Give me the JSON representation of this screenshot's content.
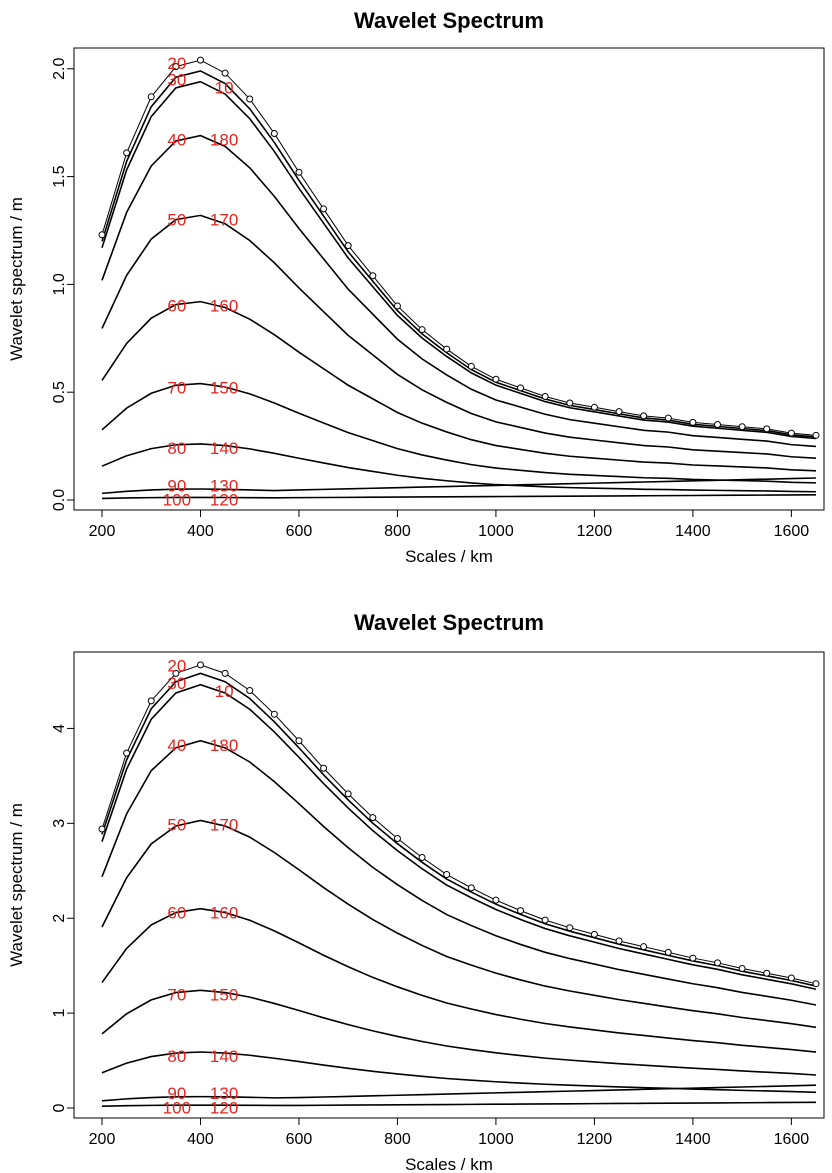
{
  "colors": {
    "label": "#e8231d",
    "line": "#000000"
  },
  "chart_data": [
    {
      "type": "line",
      "title": "Wavelet Spectrum",
      "xlabel": "Scales / km",
      "ylabel": "Wavelet spectrum / m",
      "xlim": [
        200,
        1650
      ],
      "ylim": [
        0,
        2.05
      ],
      "xticks": [
        "200",
        "400",
        "600",
        "800",
        "1000",
        "1200",
        "1400",
        "1600"
      ],
      "yticks": [
        "0.0",
        "0.5",
        "1.0",
        "1.5",
        "2.0"
      ],
      "x": [
        200,
        250,
        300,
        350,
        400,
        450,
        500,
        550,
        600,
        650,
        700,
        750,
        800,
        850,
        900,
        950,
        1000,
        1050,
        1100,
        1150,
        1200,
        1250,
        1300,
        1350,
        1400,
        1450,
        1500,
        1550,
        1600,
        1650
      ],
      "total": [
        1.23,
        1.61,
        1.87,
        2.01,
        2.04,
        1.98,
        1.86,
        1.7,
        1.52,
        1.35,
        1.18,
        1.04,
        0.9,
        0.79,
        0.7,
        0.62,
        0.56,
        0.52,
        0.48,
        0.45,
        0.43,
        0.41,
        0.39,
        0.38,
        0.36,
        0.35,
        0.34,
        0.33,
        0.31,
        0.3
      ],
      "levels": [
        {
          "left": "20",
          "right": "10",
          "peak": 1.99
        },
        {
          "left": "30",
          "right": "",
          "peak": 1.94
        },
        {
          "left": "40",
          "right": "180",
          "peak": 1.69
        },
        {
          "left": "50",
          "right": "170",
          "peak": 1.32
        },
        {
          "left": "60",
          "right": "160",
          "peak": 0.92
        },
        {
          "left": "70",
          "right": "150",
          "peak": 0.54
        },
        {
          "left": "80",
          "right": "140",
          "peak": 0.26
        },
        {
          "left": "90",
          "right": "130",
          "peak": 0.085
        },
        {
          "left": "100",
          "right": "120",
          "peak": 0.02
        }
      ]
    },
    {
      "type": "line",
      "title": "Wavelet Spectrum",
      "xlabel": "Scales / km",
      "ylabel": "Wavelet spectrum / m",
      "xlim": [
        200,
        1650
      ],
      "ylim": [
        0,
        4.7
      ],
      "xticks": [
        "200",
        "400",
        "600",
        "800",
        "1000",
        "1200",
        "1400",
        "1600"
      ],
      "yticks": [
        "0",
        "1",
        "2",
        "3",
        "4"
      ],
      "x": [
        200,
        250,
        300,
        350,
        400,
        450,
        500,
        550,
        600,
        650,
        700,
        750,
        800,
        850,
        900,
        950,
        1000,
        1050,
        1100,
        1150,
        1200,
        1250,
        1300,
        1350,
        1400,
        1450,
        1500,
        1550,
        1600,
        1650
      ],
      "total": [
        2.94,
        3.74,
        4.29,
        4.58,
        4.67,
        4.58,
        4.4,
        4.15,
        3.87,
        3.58,
        3.31,
        3.06,
        2.84,
        2.64,
        2.46,
        2.32,
        2.19,
        2.08,
        1.98,
        1.9,
        1.83,
        1.76,
        1.7,
        1.64,
        1.58,
        1.53,
        1.47,
        1.42,
        1.37,
        1.31
      ],
      "levels": [
        {
          "left": "20",
          "right": "10",
          "peak": 4.58
        },
        {
          "left": "30",
          "right": "",
          "peak": 4.46
        },
        {
          "left": "40",
          "right": "180",
          "peak": 3.87
        },
        {
          "left": "50",
          "right": "170",
          "peak": 3.03
        },
        {
          "left": "60",
          "right": "160",
          "peak": 2.1
        },
        {
          "left": "70",
          "right": "150",
          "peak": 1.24
        },
        {
          "left": "80",
          "right": "140",
          "peak": 0.59
        },
        {
          "left": "90",
          "right": "130",
          "peak": 0.2
        },
        {
          "left": "100",
          "right": "120",
          "peak": 0.05
        }
      ]
    }
  ]
}
